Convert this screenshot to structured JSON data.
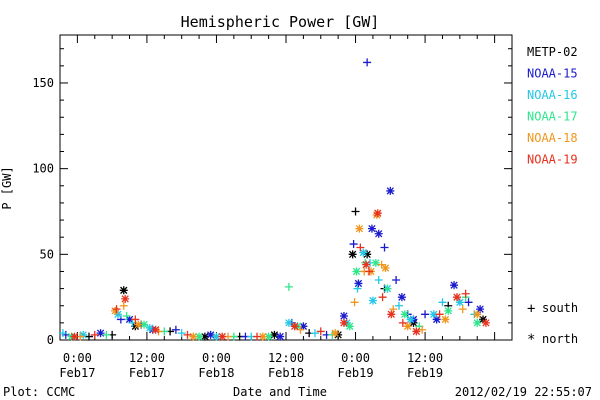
{
  "footer": {
    "left": "Plot: CCMC",
    "center": "Date and Time",
    "right": "2012/02/19 22:55:07"
  },
  "legend": {
    "satellites": [
      {
        "label": "METP-02",
        "color": "#000000"
      },
      {
        "label": "NOAA-15",
        "color": "#1a1acd"
      },
      {
        "label": "NOAA-16",
        "color": "#22c8e6"
      },
      {
        "label": "NOAA-17",
        "color": "#2ee68c"
      },
      {
        "label": "NOAA-18",
        "color": "#f0961e"
      },
      {
        "label": "NOAA-19",
        "color": "#e6321e"
      }
    ],
    "markers": [
      {
        "symbol": "+",
        "label": "south"
      },
      {
        "symbol": "*",
        "label": "north"
      }
    ]
  },
  "chart_data": {
    "type": "scatter",
    "title": "Hemispheric Power [GW]",
    "xlabel": "Date and Time",
    "ylabel": "P [GW]",
    "ylim": [
      0,
      178
    ],
    "xlim": [
      "2012-02-16T21:00",
      "2012-02-20T03:00"
    ],
    "yticks": [
      0,
      50,
      100,
      150
    ],
    "xticks": [
      {
        "time": "2012-02-17T00:00",
        "label1": "0:00",
        "label2": "Feb17"
      },
      {
        "time": "2012-02-17T12:00",
        "label1": "12:00",
        "label2": "Feb17"
      },
      {
        "time": "2012-02-18T00:00",
        "label1": "0:00",
        "label2": "Feb18"
      },
      {
        "time": "2012-02-18T12:00",
        "label1": "12:00",
        "label2": "Feb18"
      },
      {
        "time": "2012-02-19T00:00",
        "label1": "0:00",
        "label2": "Feb19"
      },
      {
        "time": "2012-02-19T12:00",
        "label1": "12:00",
        "label2": "Feb19"
      }
    ],
    "grid": false,
    "series": [
      {
        "name": "METP-02",
        "color": "#000000",
        "points": [
          [
            "2012-02-17T02:00",
            2,
            "+"
          ],
          [
            "2012-02-17T06:00",
            3,
            "+"
          ],
          [
            "2012-02-17T08:00",
            29,
            "*"
          ],
          [
            "2012-02-17T10:00",
            8,
            "*"
          ],
          [
            "2012-02-17T16:00",
            5,
            "+"
          ],
          [
            "2012-02-17T22:00",
            2,
            "*"
          ],
          [
            "2012-02-18T04:00",
            2,
            "+"
          ],
          [
            "2012-02-18T10:00",
            3,
            "*"
          ],
          [
            "2012-02-18T16:00",
            4,
            "+"
          ],
          [
            "2012-02-18T21:00",
            3,
            "*"
          ],
          [
            "2012-02-18T23:30",
            50,
            "*"
          ],
          [
            "2012-02-19T00:00",
            75,
            "+"
          ],
          [
            "2012-02-19T02:00",
            50,
            "*"
          ],
          [
            "2012-02-19T05:00",
            30,
            "+"
          ],
          [
            "2012-02-19T10:00",
            10,
            "*"
          ],
          [
            "2012-02-19T16:00",
            20,
            "+"
          ],
          [
            "2012-02-19T22:00",
            12,
            "*"
          ]
        ]
      },
      {
        "name": "NOAA-15",
        "color": "#1a1acd",
        "points": [
          [
            "2012-02-16T22:00",
            3,
            "+"
          ],
          [
            "2012-02-17T04:00",
            4,
            "*"
          ],
          [
            "2012-02-17T07:30",
            12,
            "+"
          ],
          [
            "2012-02-17T09:00",
            12,
            "*"
          ],
          [
            "2012-02-17T11:00",
            9,
            "+"
          ],
          [
            "2012-02-17T13:00",
            6,
            "*"
          ],
          [
            "2012-02-17T17:00",
            6,
            "+"
          ],
          [
            "2012-02-17T23:00",
            3,
            "*"
          ],
          [
            "2012-02-18T05:00",
            2,
            "+"
          ],
          [
            "2012-02-18T11:00",
            2,
            "*"
          ],
          [
            "2012-02-18T13:00",
            10,
            "+"
          ],
          [
            "2012-02-18T15:00",
            8,
            "*"
          ],
          [
            "2012-02-18T19:00",
            3,
            "+"
          ],
          [
            "2012-02-18T22:00",
            14,
            "*"
          ],
          [
            "2012-02-18T23:40",
            56,
            "+"
          ],
          [
            "2012-02-19T00:30",
            33,
            "*"
          ],
          [
            "2012-02-19T02:00",
            162,
            "+"
          ],
          [
            "2012-02-19T02:50",
            65,
            "*"
          ],
          [
            "2012-02-19T04:00",
            62,
            "*"
          ],
          [
            "2012-02-19T05:00",
            54,
            "+"
          ],
          [
            "2012-02-19T06:00",
            87,
            "*"
          ],
          [
            "2012-02-19T07:00",
            35,
            "+"
          ],
          [
            "2012-02-19T08:00",
            25,
            "*"
          ],
          [
            "2012-02-19T09:00",
            15,
            "+"
          ],
          [
            "2012-02-19T10:00",
            12,
            "*"
          ],
          [
            "2012-02-19T12:00",
            15,
            "+"
          ],
          [
            "2012-02-19T14:00",
            12,
            "*"
          ],
          [
            "2012-02-19T17:00",
            32,
            "*"
          ],
          [
            "2012-02-19T19:30",
            22,
            "+"
          ],
          [
            "2012-02-19T21:30",
            18,
            "*"
          ]
        ]
      },
      {
        "name": "NOAA-16",
        "color": "#22c8e6",
        "points": [
          [
            "2012-02-16T21:30",
            4,
            "+"
          ],
          [
            "2012-02-17T01:00",
            3,
            "*"
          ],
          [
            "2012-02-17T07:00",
            15,
            "*"
          ],
          [
            "2012-02-17T09:30",
            10,
            "+"
          ],
          [
            "2012-02-17T12:30",
            7,
            "*"
          ],
          [
            "2012-02-17T18:00",
            4,
            "+"
          ],
          [
            "2012-02-18T00:00",
            2,
            "*"
          ],
          [
            "2012-02-18T06:00",
            2,
            "+"
          ],
          [
            "2012-02-18T12:30",
            10,
            "*"
          ],
          [
            "2012-02-18T17:00",
            4,
            "+"
          ],
          [
            "2012-02-18T22:30",
            10,
            "*"
          ],
          [
            "2012-02-19T00:20",
            30,
            "+"
          ],
          [
            "2012-02-19T01:20",
            51,
            "*"
          ],
          [
            "2012-02-19T02:30",
            45,
            "+"
          ],
          [
            "2012-02-19T03:00",
            23,
            "*"
          ],
          [
            "2012-02-19T04:00",
            35,
            "+"
          ],
          [
            "2012-02-19T05:30",
            30,
            "*"
          ],
          [
            "2012-02-19T07:30",
            20,
            "+"
          ],
          [
            "2012-02-19T09:30",
            12,
            "*"
          ],
          [
            "2012-02-19T13:30",
            15,
            "*"
          ],
          [
            "2012-02-19T15:00",
            22,
            "+"
          ],
          [
            "2012-02-19T18:00",
            22,
            "*"
          ],
          [
            "2012-02-19T20:30",
            15,
            "+"
          ]
        ]
      },
      {
        "name": "NOAA-17",
        "color": "#2ee68c",
        "points": [
          [
            "2012-02-16T23:00",
            2,
            "*"
          ],
          [
            "2012-02-17T05:00",
            3,
            "+"
          ],
          [
            "2012-02-17T08:30",
            14,
            "+"
          ],
          [
            "2012-02-17T11:30",
            9,
            "*"
          ],
          [
            "2012-02-17T15:00",
            5,
            "+"
          ],
          [
            "2012-02-17T21:00",
            2,
            "*"
          ],
          [
            "2012-02-18T03:00",
            2,
            "+"
          ],
          [
            "2012-02-18T09:00",
            2,
            "*"
          ],
          [
            "2012-02-18T12:30",
            31,
            "+"
          ],
          [
            "2012-02-18T14:00",
            8,
            "*"
          ],
          [
            "2012-02-18T20:00",
            3,
            "+"
          ],
          [
            "2012-02-18T23:00",
            8,
            "*"
          ],
          [
            "2012-02-19T00:10",
            40,
            "*"
          ],
          [
            "2012-02-19T01:40",
            45,
            "+"
          ],
          [
            "2012-02-19T03:30",
            45,
            "*"
          ],
          [
            "2012-02-19T05:30",
            30,
            "+"
          ],
          [
            "2012-02-19T08:30",
            15,
            "*"
          ],
          [
            "2012-02-19T11:00",
            8,
            "+"
          ],
          [
            "2012-02-19T16:00",
            17,
            "*"
          ],
          [
            "2012-02-19T19:00",
            25,
            "+"
          ],
          [
            "2012-02-19T21:00",
            10,
            "*"
          ]
        ]
      },
      {
        "name": "NOAA-18",
        "color": "#f0961e",
        "points": [
          [
            "2012-02-17T00:30",
            2,
            "+"
          ],
          [
            "2012-02-17T06:30",
            17,
            "*"
          ],
          [
            "2012-02-17T08:00",
            20,
            "+"
          ],
          [
            "2012-02-17T10:30",
            9,
            "*"
          ],
          [
            "2012-02-17T14:00",
            5,
            "+"
          ],
          [
            "2012-02-17T20:00",
            2,
            "*"
          ],
          [
            "2012-02-18T02:00",
            2,
            "+"
          ],
          [
            "2012-02-18T08:00",
            2,
            "*"
          ],
          [
            "2012-02-18T14:30",
            6,
            "+"
          ],
          [
            "2012-02-18T20:30",
            4,
            "*"
          ],
          [
            "2012-02-18T23:50",
            22,
            "+"
          ],
          [
            "2012-02-19T00:40",
            65,
            "*"
          ],
          [
            "2012-02-19T01:30",
            40,
            "+"
          ],
          [
            "2012-02-19T02:40",
            40,
            "*"
          ],
          [
            "2012-02-19T03:40",
            73,
            "*"
          ],
          [
            "2012-02-19T04:30",
            44,
            "+"
          ],
          [
            "2012-02-19T05:10",
            42,
            "*"
          ],
          [
            "2012-02-19T06:30",
            18,
            "+"
          ],
          [
            "2012-02-19T09:00",
            8,
            "*"
          ],
          [
            "2012-02-19T11:30",
            6,
            "+"
          ],
          [
            "2012-02-19T15:30",
            12,
            "*"
          ],
          [
            "2012-02-19T18:30",
            18,
            "+"
          ],
          [
            "2012-02-19T21:00",
            15,
            "*"
          ]
        ]
      },
      {
        "name": "NOAA-19",
        "color": "#e6321e",
        "points": [
          [
            "2012-02-16T23:30",
            2,
            "*"
          ],
          [
            "2012-02-17T03:00",
            3,
            "+"
          ],
          [
            "2012-02-17T06:45",
            18,
            "+"
          ],
          [
            "2012-02-17T08:15",
            24,
            "*"
          ],
          [
            "2012-02-17T10:00",
            12,
            "+"
          ],
          [
            "2012-02-17T13:30",
            6,
            "*"
          ],
          [
            "2012-02-17T19:00",
            3,
            "+"
          ],
          [
            "2012-02-18T01:00",
            2,
            "*"
          ],
          [
            "2012-02-18T07:00",
            2,
            "+"
          ],
          [
            "2012-02-18T13:30",
            8,
            "*"
          ],
          [
            "2012-02-18T18:00",
            5,
            "+"
          ],
          [
            "2012-02-18T22:00",
            10,
            "*"
          ],
          [
            "2012-02-19T00:50",
            54,
            "+"
          ],
          [
            "2012-02-19T01:50",
            44,
            "*"
          ],
          [
            "2012-02-19T02:20",
            40,
            "+"
          ],
          [
            "2012-02-19T03:50",
            74,
            "*"
          ],
          [
            "2012-02-19T04:40",
            25,
            "+"
          ],
          [
            "2012-02-19T06:10",
            15,
            "*"
          ],
          [
            "2012-02-19T08:10",
            10,
            "+"
          ],
          [
            "2012-02-19T10:30",
            5,
            "*"
          ],
          [
            "2012-02-19T14:30",
            15,
            "+"
          ],
          [
            "2012-02-19T17:30",
            25,
            "*"
          ],
          [
            "2012-02-19T19:00",
            27,
            "+"
          ],
          [
            "2012-02-19T22:30",
            10,
            "*"
          ]
        ]
      }
    ]
  }
}
